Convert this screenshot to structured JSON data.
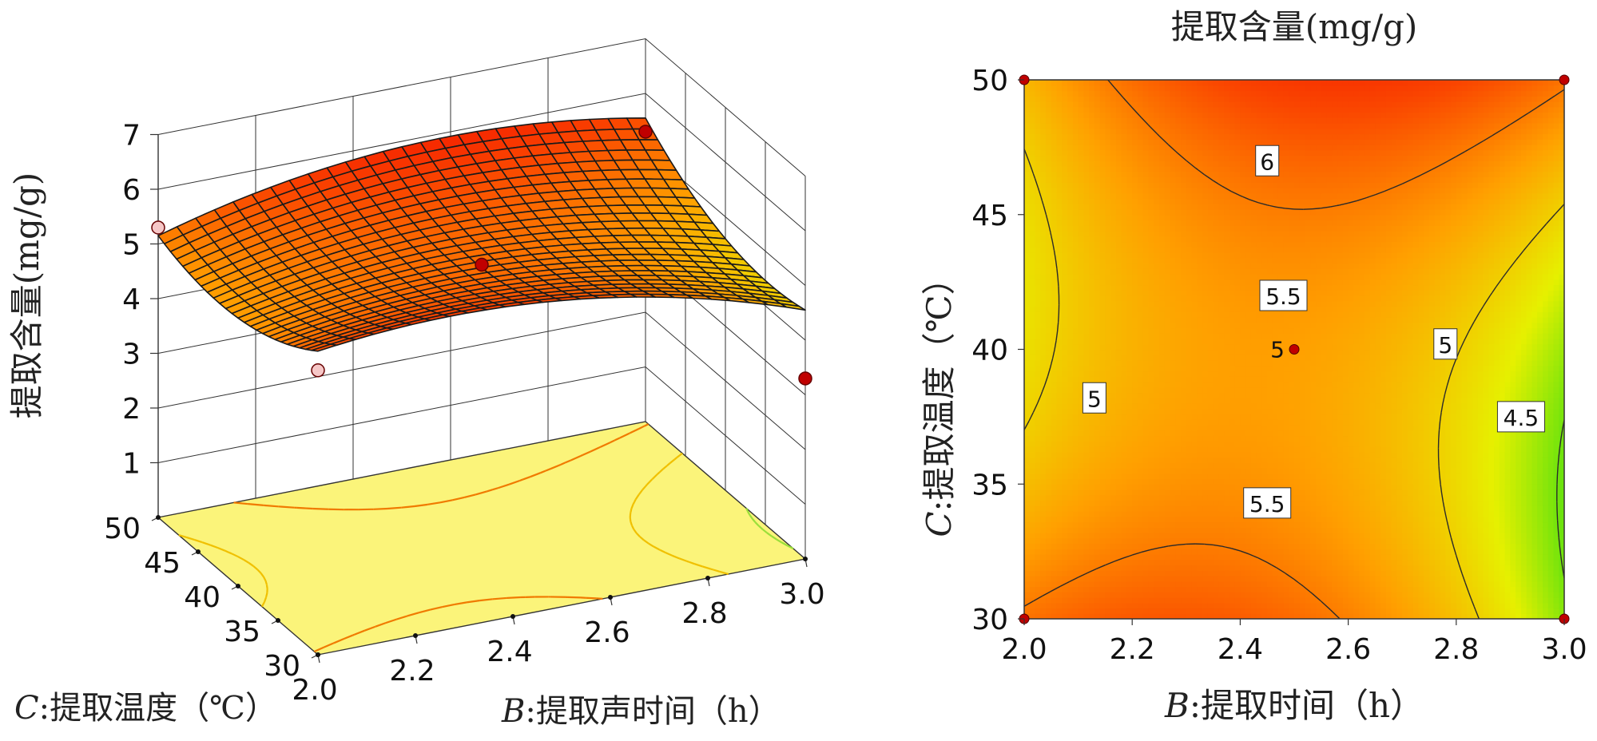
{
  "chart_data": [
    {
      "type": "surface3d",
      "z_axis": {
        "title": "提取含量(mg/g)",
        "ticks": [
          "1",
          "2",
          "3",
          "4",
          "5",
          "6",
          "7"
        ],
        "range": [
          0,
          7
        ]
      },
      "x_axis": {
        "var": "B",
        "label": ":提取声时间（h）",
        "ticks": [
          "2.0",
          "2.2",
          "2.4",
          "2.6",
          "2.8",
          "3.0"
        ],
        "range": [
          2.0,
          3.0
        ]
      },
      "y_axis": {
        "var": "C",
        "label": ":提取温度（℃）",
        "ticks": [
          "30",
          "35",
          "40",
          "45",
          "50"
        ],
        "range": [
          30,
          50
        ]
      },
      "design_points": [
        {
          "B": 2.0,
          "C": 50,
          "value": 5.3
        },
        {
          "B": 2.5,
          "C": 40,
          "value": 5.0
        },
        {
          "B": 2.0,
          "C": 30,
          "value": 5.2
        },
        {
          "B": 3.0,
          "C": 50,
          "value": 5.3
        },
        {
          "B": 3.0,
          "C": 30,
          "value": 3.3
        }
      ],
      "surface_range": {
        "min": 3.5,
        "max": 6.3
      }
    },
    {
      "type": "contour",
      "title": "提取含量(mg/g)",
      "x_axis": {
        "var": "B",
        "label": ":提取时间（h）",
        "ticks": [
          "2.0",
          "2.2",
          "2.4",
          "2.6",
          "2.8",
          "3.0"
        ],
        "range": [
          2.0,
          3.0
        ]
      },
      "y_axis": {
        "var": "C",
        "label": ":提取温度（℃）",
        "ticks": [
          "30",
          "35",
          "40",
          "45",
          "50"
        ],
        "range": [
          30,
          50
        ]
      },
      "contour_levels": [
        4.5,
        5,
        5.5,
        6
      ],
      "contour_labels": [
        {
          "text": "6",
          "B": 2.45,
          "C": 47.0
        },
        {
          "text": "5.5",
          "B": 2.48,
          "C": 42.0
        },
        {
          "text": "5.5",
          "B": 2.45,
          "C": 34.3
        },
        {
          "text": "5",
          "B": 2.13,
          "C": 38.2
        },
        {
          "text": "5",
          "B": 2.78,
          "C": 40.2
        },
        {
          "text": "4.5",
          "B": 2.92,
          "C": 37.5
        }
      ],
      "center_point": {
        "B": 2.5,
        "C": 40,
        "label": "5"
      },
      "corner_points": [
        {
          "B": 2.0,
          "C": 50
        },
        {
          "B": 3.0,
          "C": 50
        },
        {
          "B": 2.0,
          "C": 30
        },
        {
          "B": 3.0,
          "C": 30
        }
      ]
    }
  ]
}
